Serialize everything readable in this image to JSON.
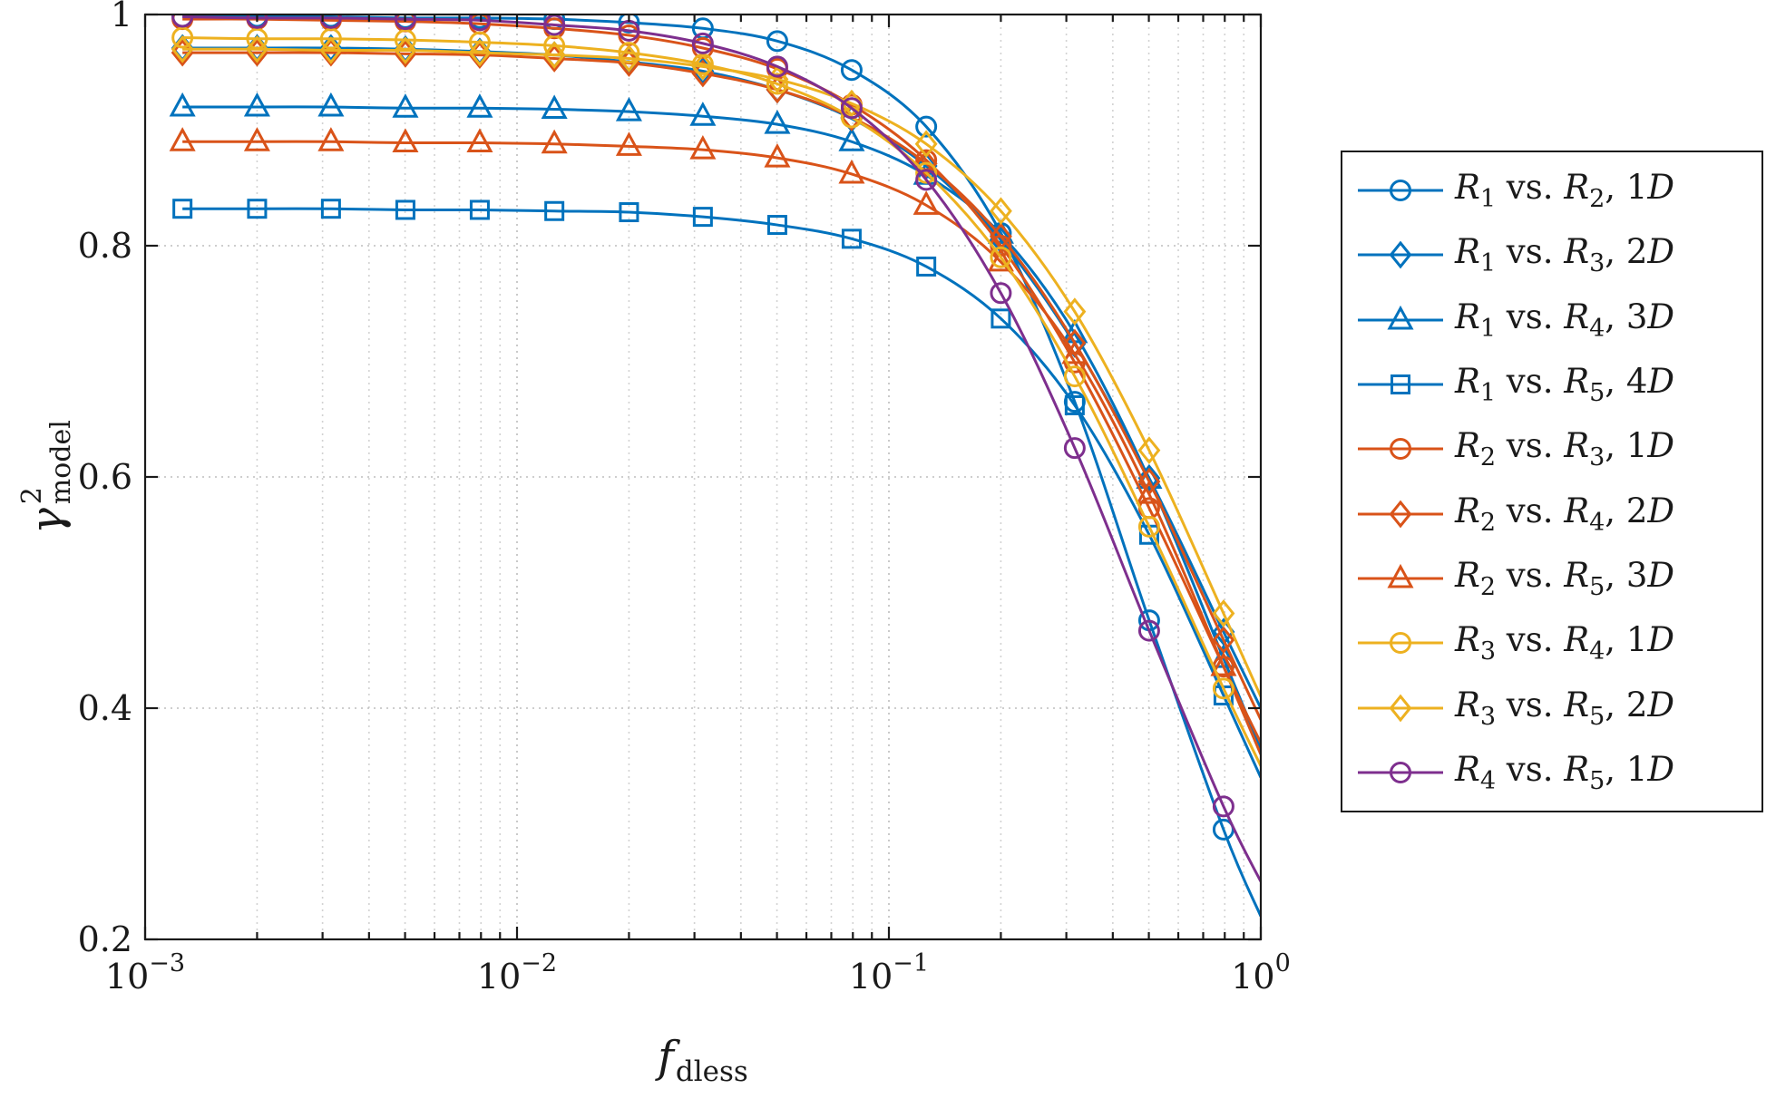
{
  "figure": {
    "background": "#ffffff"
  },
  "chart_data": {
    "type": "line",
    "xscale": "log",
    "xlim": [
      0.001,
      1
    ],
    "ylim": [
      0.2,
      1
    ],
    "x_tick_exponents": [
      -3,
      -2,
      -1,
      0
    ],
    "y_tick_values": [
      0.2,
      0.4,
      0.6,
      0.8,
      1
    ],
    "y_tick_labels": [
      "0.2",
      "0.4",
      "0.6",
      "0.8",
      "1"
    ],
    "grid": true,
    "minor_grid": true,
    "legend_position": "outside-right",
    "xlabel": {
      "symbol": "f",
      "sub": "dless"
    },
    "ylabel": {
      "symbol": "γ",
      "sup": "2",
      "sub": "model"
    },
    "legend": {
      "vs": "vs.",
      "comma": ", "
    },
    "colors": {
      "blue": "#0072BD",
      "orange": "#D95319",
      "yellow": "#EDB120",
      "purple": "#7E2F8E"
    },
    "x": [
      0.00126,
      0.002,
      0.00316,
      0.00501,
      0.00794,
      0.0126,
      0.02,
      0.0316,
      0.0501,
      0.0794,
      0.126,
      0.2,
      0.316,
      0.501,
      0.794,
      1.0
    ],
    "series": [
      {
        "a": "R",
        "a_sub": "1",
        "b": "R",
        "b_sub": "2",
        "dim_num": "1",
        "dim_letter": "D",
        "color": "#0072BD",
        "marker": "circle",
        "values": [
          0.998,
          0.998,
          0.998,
          0.997,
          0.997,
          0.996,
          0.993,
          0.988,
          0.977,
          0.952,
          0.903,
          0.811,
          0.665,
          0.476,
          0.295,
          0.22
        ]
      },
      {
        "a": "R",
        "a_sub": "1",
        "b": "R",
        "b_sub": "3",
        "dim_num": "2",
        "dim_letter": "D",
        "color": "#0072BD",
        "marker": "diamond",
        "values": [
          0.971,
          0.971,
          0.971,
          0.97,
          0.968,
          0.965,
          0.959,
          0.951,
          0.935,
          0.91,
          0.869,
          0.805,
          0.715,
          0.599,
          0.466,
          0.4
        ]
      },
      {
        "a": "R",
        "a_sub": "1",
        "b": "R",
        "b_sub": "4",
        "dim_num": "3",
        "dim_letter": "D",
        "color": "#0072BD",
        "marker": "triangle",
        "values": [
          0.92,
          0.92,
          0.92,
          0.919,
          0.919,
          0.918,
          0.916,
          0.912,
          0.905,
          0.89,
          0.861,
          0.81,
          0.724,
          0.598,
          0.443,
          0.365
        ]
      },
      {
        "a": "R",
        "a_sub": "1",
        "b": "R",
        "b_sub": "5",
        "dim_num": "4",
        "dim_letter": "D",
        "color": "#0072BD",
        "marker": "square",
        "values": [
          0.832,
          0.832,
          0.832,
          0.831,
          0.831,
          0.83,
          0.829,
          0.825,
          0.818,
          0.806,
          0.782,
          0.737,
          0.662,
          0.55,
          0.411,
          0.34
        ]
      },
      {
        "a": "R",
        "a_sub": "2",
        "b": "R",
        "b_sub": "3",
        "dim_num": "1",
        "dim_letter": "D",
        "color": "#D95319",
        "marker": "circle",
        "values": [
          0.996,
          0.996,
          0.995,
          0.994,
          0.992,
          0.988,
          0.982,
          0.971,
          0.953,
          0.922,
          0.874,
          0.8,
          0.699,
          0.573,
          0.436,
          0.37
        ]
      },
      {
        "a": "R",
        "a_sub": "2",
        "b": "R",
        "b_sub": "4",
        "dim_num": "2",
        "dim_letter": "D",
        "color": "#D95319",
        "marker": "diamond",
        "values": [
          0.967,
          0.967,
          0.967,
          0.966,
          0.965,
          0.962,
          0.958,
          0.949,
          0.935,
          0.911,
          0.871,
          0.808,
          0.716,
          0.596,
          0.459,
          0.39
        ]
      },
      {
        "a": "R",
        "a_sub": "2",
        "b": "R",
        "b_sub": "5",
        "dim_num": "3",
        "dim_letter": "D",
        "color": "#D95319",
        "marker": "triangle",
        "values": [
          0.89,
          0.89,
          0.89,
          0.889,
          0.889,
          0.888,
          0.886,
          0.883,
          0.876,
          0.862,
          0.835,
          0.786,
          0.706,
          0.585,
          0.436,
          0.36
        ]
      },
      {
        "a": "R",
        "a_sub": "3",
        "b": "R",
        "b_sub": "4",
        "dim_num": "1",
        "dim_letter": "D",
        "color": "#EDB120",
        "marker": "circle",
        "values": [
          0.98,
          0.979,
          0.979,
          0.978,
          0.976,
          0.973,
          0.967,
          0.957,
          0.94,
          0.911,
          0.863,
          0.79,
          0.687,
          0.557,
          0.417,
          0.35
        ]
      },
      {
        "a": "R",
        "a_sub": "3",
        "b": "R",
        "b_sub": "5",
        "dim_num": "2",
        "dim_letter": "D",
        "color": "#EDB120",
        "marker": "diamond",
        "values": [
          0.97,
          0.97,
          0.969,
          0.969,
          0.967,
          0.965,
          0.962,
          0.955,
          0.944,
          0.923,
          0.888,
          0.83,
          0.743,
          0.623,
          0.482,
          0.41
        ]
      },
      {
        "a": "R",
        "a_sub": "4",
        "b": "R",
        "b_sub": "5",
        "dim_num": "1",
        "dim_letter": "D",
        "color": "#7E2F8E",
        "marker": "circle",
        "values": [
          0.998,
          0.997,
          0.997,
          0.996,
          0.995,
          0.991,
          0.986,
          0.975,
          0.955,
          0.919,
          0.857,
          0.759,
          0.625,
          0.467,
          0.315,
          0.25
        ]
      }
    ]
  }
}
